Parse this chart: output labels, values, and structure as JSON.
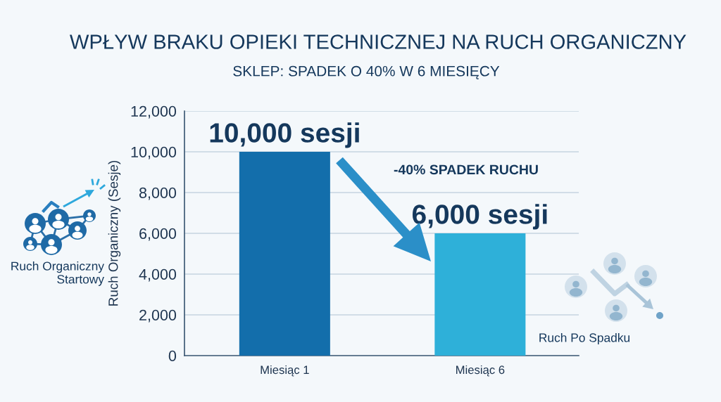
{
  "chart_data": {
    "type": "bar",
    "title": "WPŁYW BRAKU OPIEKI TECHNICZNEJ NA RUCH ORGANICZNY",
    "subtitle": "SKLEP: SPADEK O 40% W 6 MIESIĘCY",
    "ylabel": "Ruch Organiczny (Sesje)",
    "categories": [
      "Miesiąc 1",
      "Miesiąc 6"
    ],
    "values": [
      10000,
      6000
    ],
    "colors": [
      "#136eab",
      "#2eb0d9"
    ],
    "value_labels": [
      "10,000 sesji",
      "6,000 sesji"
    ],
    "ylim": [
      0,
      12000
    ],
    "yticks": [
      0,
      {
        "value": 2000,
        "label": "2,000"
      },
      {
        "value": 4000,
        "label": "4,000"
      },
      {
        "value": 6000,
        "label": "6,000"
      },
      {
        "value": 8000,
        "label": "8,000"
      },
      {
        "value": 10000,
        "label": "10,000"
      },
      {
        "value": 12000,
        "label": "12,000"
      }
    ],
    "grid": "y",
    "annotations": [
      "-40% SPADEK RUCHU",
      "Ruch Organiczny Startowy",
      "Ruch Po Spadku"
    ]
  }
}
